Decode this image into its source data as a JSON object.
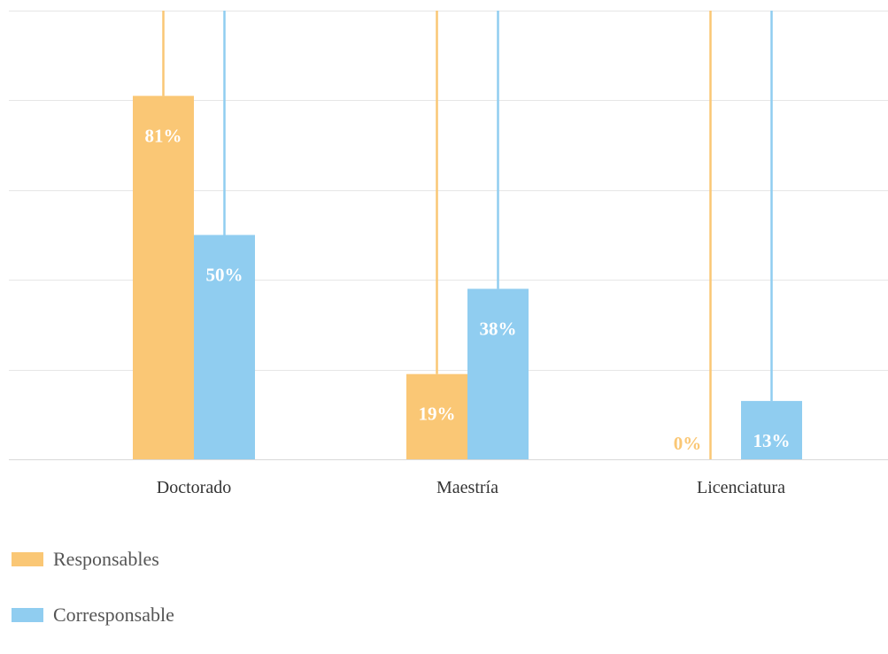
{
  "chart_data": {
    "type": "bar",
    "title": "",
    "xlabel": "",
    "ylabel": "",
    "categories": [
      "Doctorado",
      "Maestría",
      "Licenciatura"
    ],
    "series": [
      {
        "name": "Responsables",
        "values": [
          81,
          19,
          0
        ],
        "labels": [
          "81%",
          "19%",
          "0%"
        ],
        "color": "#FAC775"
      },
      {
        "name": "Corresponsable",
        "values": [
          50,
          38,
          13
        ],
        "labels": [
          "50%",
          "38%",
          "13%"
        ],
        "color": "#90CDF0"
      }
    ],
    "ylim": [
      0,
      100
    ],
    "grid": true,
    "legend": "bottom-left"
  }
}
